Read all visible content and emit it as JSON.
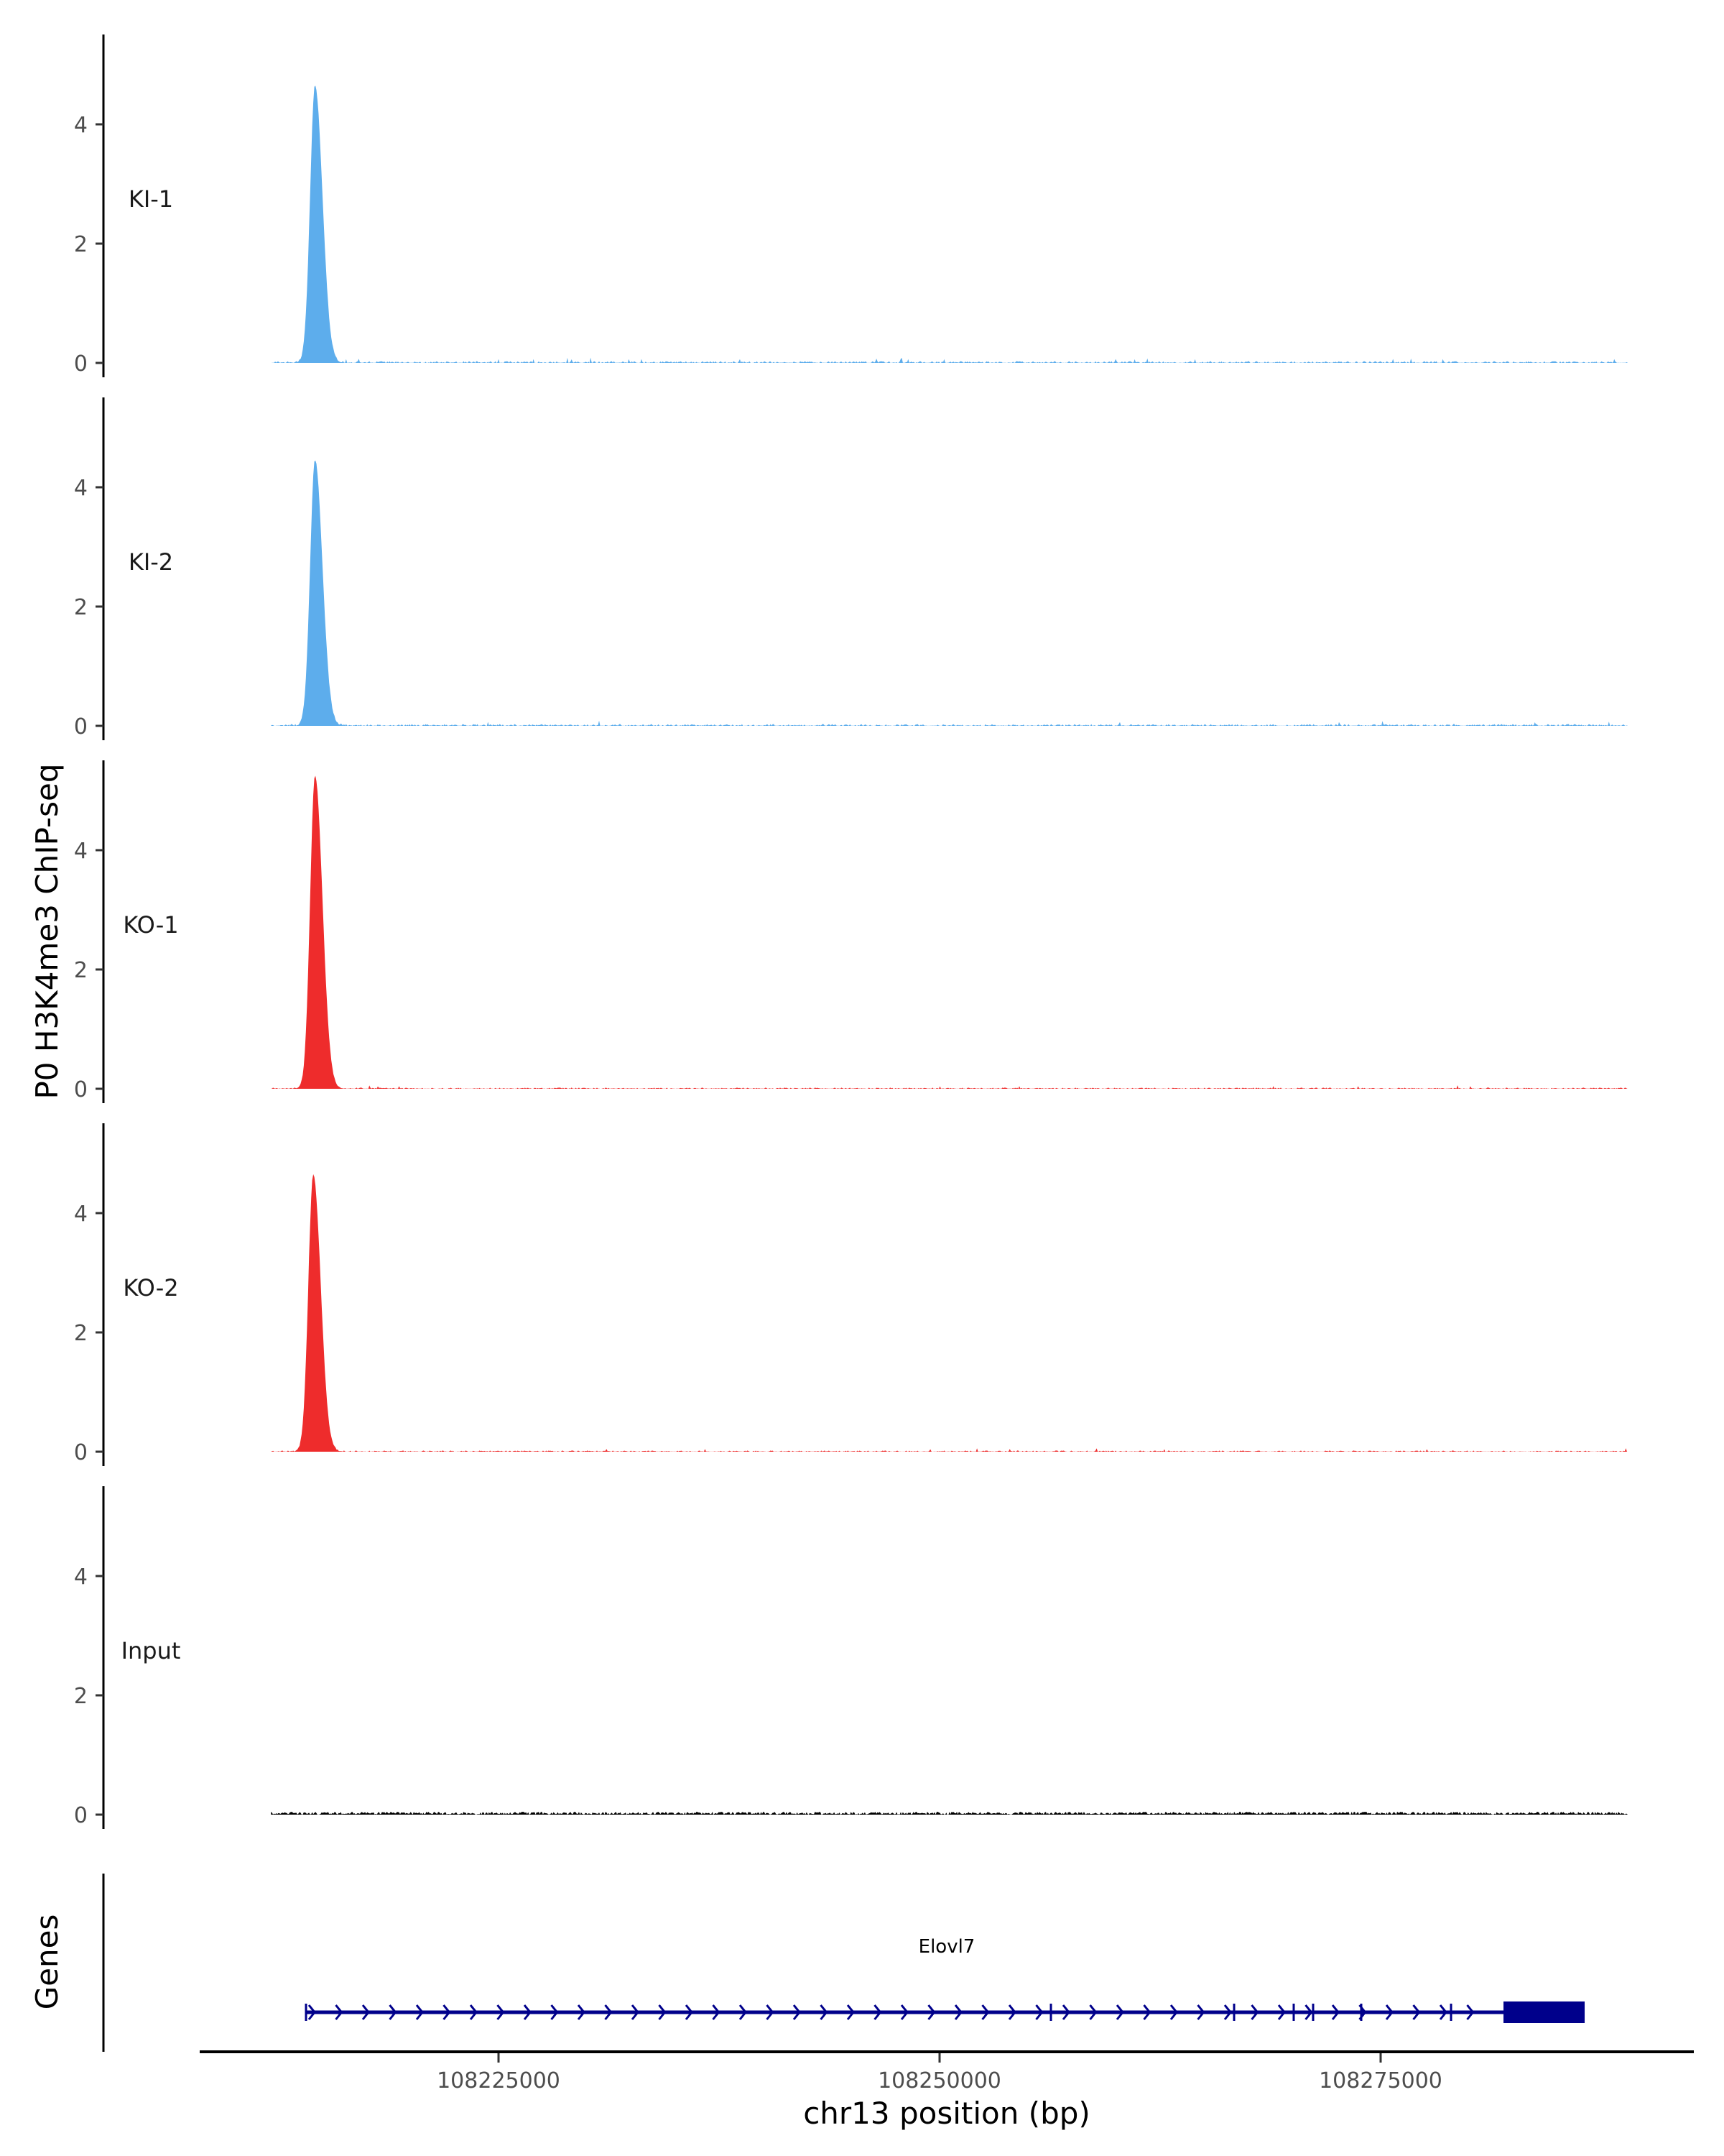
{
  "chart_data": {
    "type": "area",
    "title": "",
    "ylabel": "P0 H3K4me3 ChIP-seq",
    "xlabel": "chr13 position (bp)",
    "xlim": [
      108212000,
      108289000
    ],
    "ylim": [
      0,
      5.3
    ],
    "y_ticks": [
      "0",
      "2",
      "4"
    ],
    "x_ticks": [
      {
        "value": 108225000,
        "label": "108225000"
      },
      {
        "value": 108250000,
        "label": "108250000"
      },
      {
        "value": 108275000,
        "label": "108275000"
      }
    ],
    "series": [
      {
        "name": "KI-1",
        "color": "#5DADEC",
        "peak_position": 108214600,
        "peak_height": 4.65,
        "baseline": 0.03
      },
      {
        "name": "KI-2",
        "color": "#5DADEC",
        "peak_position": 108214600,
        "peak_height": 4.45,
        "baseline": 0.03
      },
      {
        "name": "KO-1",
        "color": "#EE2C2C",
        "peak_position": 108214600,
        "peak_height": 5.25,
        "baseline": 0.02
      },
      {
        "name": "KO-2",
        "color": "#EE2C2C",
        "peak_position": 108214500,
        "peak_height": 4.65,
        "baseline": 0.02
      },
      {
        "name": "Input",
        "color": "#000000",
        "peak_position": null,
        "peak_height": 0.06,
        "baseline": 0.04
      }
    ],
    "genes_track": {
      "label": "Genes",
      "color": "#00008B",
      "genes": [
        {
          "name": "Elovl7",
          "start": 108214088,
          "end": 108286564,
          "strand": "+",
          "exons": [
            108214088,
            108256311,
            108266694,
            108270073,
            108271173,
            108273900,
            108278990
          ],
          "utr_block": [
            108281963,
            108286564
          ]
        }
      ]
    }
  }
}
